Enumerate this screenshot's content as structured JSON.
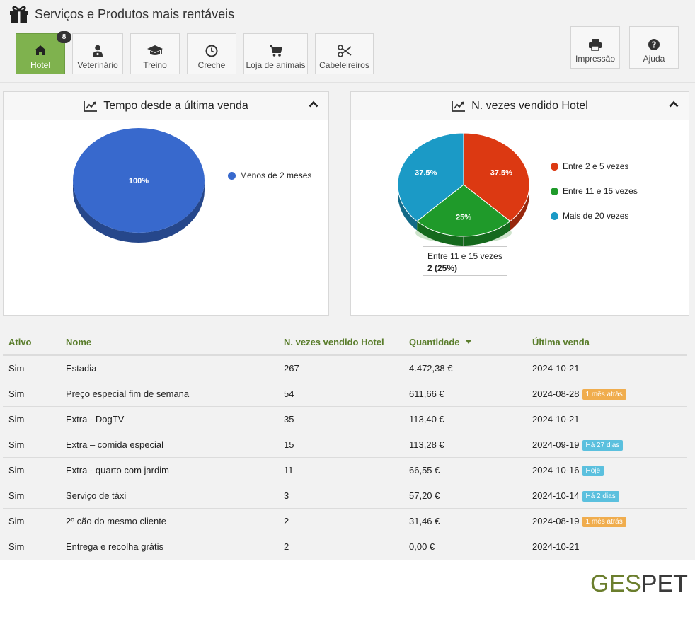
{
  "header": {
    "title": "Serviços e Produtos mais rentáveis",
    "tabs": [
      {
        "label": "Hotel",
        "icon": "home-icon",
        "active": true
      },
      {
        "label": "Veterinário",
        "icon": "doctor-icon"
      },
      {
        "label": "Treino",
        "icon": "graduation-cap-icon"
      },
      {
        "label": "Creche",
        "icon": "clock-icon"
      },
      {
        "label": "Loja de animais",
        "icon": "shopping-cart-icon"
      },
      {
        "label": "Cabeleireiros",
        "icon": "scissors-icon"
      }
    ],
    "hotel_badge": "8",
    "actions": {
      "print_label": "Impressão",
      "help_label": "Ajuda"
    }
  },
  "chart_data": [
    {
      "type": "pie",
      "title": "Tempo desde a última venda",
      "categories": [
        "Menos de 2 meses"
      ],
      "values": [
        100
      ],
      "labels": [
        "100%"
      ],
      "colors": [
        "#3869cd"
      ],
      "legend": "right"
    },
    {
      "type": "pie",
      "title": "N. vezes vendido Hotel",
      "categories": [
        "Entre 2 e 5 vezes",
        "Entre 11 e 15 vezes",
        "Mais de 20 vezes"
      ],
      "values": [
        37.5,
        25,
        37.5
      ],
      "labels": [
        "37.5%",
        "25%",
        "37.5%"
      ],
      "colors": [
        "#dc3912",
        "#1f9a2a",
        "#1b9ac6"
      ],
      "legend": "right",
      "tooltip": {
        "title": "Entre 11 e 15 vezes",
        "value": "2 (25%)"
      }
    }
  ],
  "table": {
    "headers": {
      "active": "Ativo",
      "name": "Nome",
      "count": "N. vezes vendido Hotel",
      "amount": "Quantidade",
      "last": "Última venda"
    },
    "rows": [
      {
        "active": "Sim",
        "name": "Estadia",
        "count": "267",
        "amount": "4.472,38 €",
        "last": "2024-10-21",
        "tag": "",
        "tag_color": ""
      },
      {
        "active": "Sim",
        "name": "Preço especial fim de semana",
        "count": "54",
        "amount": "611,66 €",
        "last": "2024-08-28",
        "tag": "1 mês atrás",
        "tag_color": "orange"
      },
      {
        "active": "Sim",
        "name": "Extra - DogTV",
        "count": "35",
        "amount": "113,40 €",
        "last": "2024-10-21",
        "tag": "",
        "tag_color": ""
      },
      {
        "active": "Sim",
        "name": "Extra – comida especial",
        "count": "15",
        "amount": "113,28 €",
        "last": "2024-09-19",
        "tag": "Há 27 dias",
        "tag_color": "blue"
      },
      {
        "active": "Sim",
        "name": "Extra - quarto com jardim",
        "count": "11",
        "amount": "66,55 €",
        "last": "2024-10-16",
        "tag": "Hoje",
        "tag_color": "blue"
      },
      {
        "active": "Sim",
        "name": "Serviço de táxi",
        "count": "3",
        "amount": "57,20 €",
        "last": "2024-10-14",
        "tag": "Há 2 dias",
        "tag_color": "blue"
      },
      {
        "active": "Sim",
        "name": "2º cão do mesmo cliente",
        "count": "2",
        "amount": "31,46 €",
        "last": "2024-08-19",
        "tag": "1 mês atrás",
        "tag_color": "orange"
      },
      {
        "active": "Sim",
        "name": "Entrega e recolha grátis",
        "count": "2",
        "amount": "0,00 €",
        "last": "2024-10-21",
        "tag": "",
        "tag_color": ""
      }
    ]
  },
  "logo": {
    "part1": "GES",
    "part2": "PET"
  }
}
